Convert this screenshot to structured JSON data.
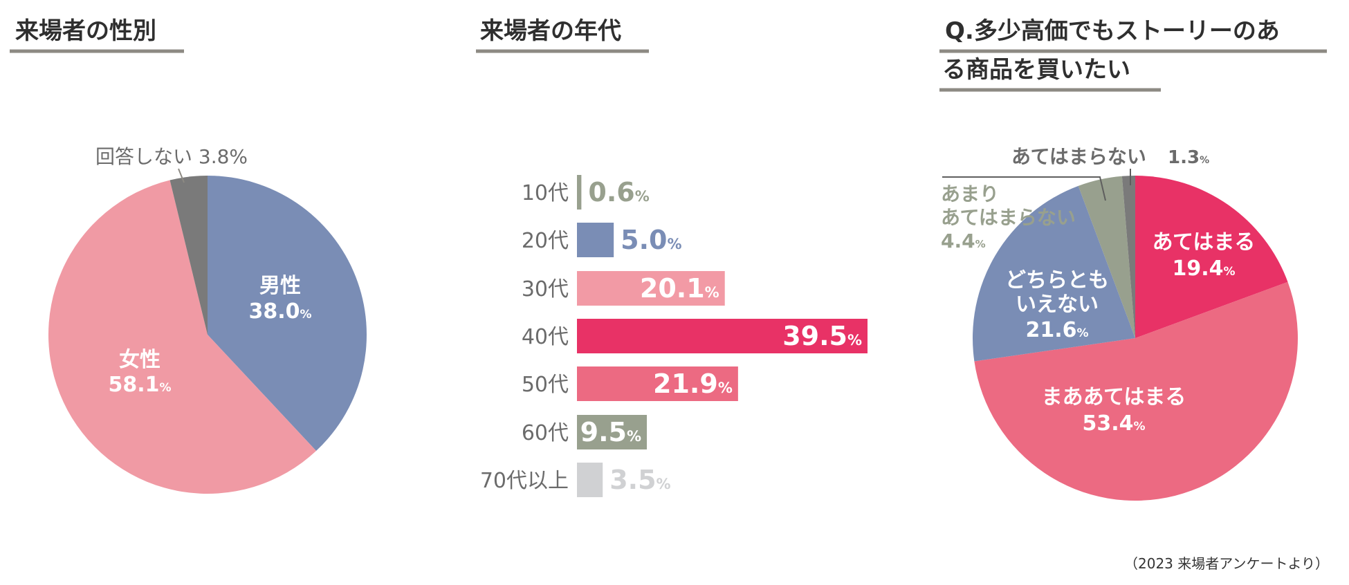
{
  "colors": {
    "male": "#7a8db5",
    "female": "#f09aa4",
    "no_answer": "#7a7a7a",
    "gray_green": "#98a08e",
    "light_gray": "#d0d1d3",
    "crimson": "#e83266",
    "rose": "#ec6a82",
    "pink": "#f29aa5",
    "text_dark": "#2f2f2f",
    "text_gray": "#6b6b6b"
  },
  "footnote": "（2023 来場者アンケートより）",
  "chart_data": [
    {
      "type": "pie",
      "title": "来場者の性別",
      "slices": [
        {
          "label": "男性",
          "value": 38.0,
          "display": "38.0",
          "unit": "%",
          "color": "#7a8db5",
          "label_inside": true
        },
        {
          "label": "女性",
          "value": 58.1,
          "display": "58.1",
          "unit": "%",
          "color": "#f09aa4",
          "label_inside": true
        },
        {
          "label": "回答しない",
          "value": 3.8,
          "display": "3.8",
          "unit": "%",
          "color": "#7a7a7a",
          "label_inside": false
        }
      ],
      "outside_label": "回答しない 3.8%"
    },
    {
      "type": "bar",
      "orientation": "horizontal",
      "title": "来場者の年代",
      "categories": [
        "10代",
        "20代",
        "30代",
        "40代",
        "50代",
        "60代",
        "70代以上"
      ],
      "values": [
        0.6,
        5.0,
        20.1,
        39.5,
        21.9,
        9.5,
        3.5
      ],
      "value_labels": [
        "0.6",
        "5.0",
        "20.1",
        "39.5",
        "21.9",
        "9.5",
        "3.5"
      ],
      "unit": "%",
      "colors": [
        "#98a08e",
        "#7a8db5",
        "#f29aa5",
        "#e83266",
        "#ec6a82",
        "#98a08e",
        "#d0d1d3"
      ],
      "label_inside": [
        false,
        false,
        true,
        true,
        true,
        true,
        false
      ]
    },
    {
      "type": "pie",
      "title": "Q.多少高価でもストーリーのある商品を買いたい",
      "title_lines": [
        "Q.多少高価でもストーリーのあ",
        "る商品を買いたい"
      ],
      "slices": [
        {
          "label": "あてはまる",
          "value": 19.4,
          "display": "19.4",
          "unit": "%",
          "color": "#e83266"
        },
        {
          "label": "まああてはまる",
          "value": 53.4,
          "display": "53.4",
          "unit": "%",
          "color": "#ec6a82"
        },
        {
          "label": "どちらともいえない",
          "label_lines": [
            "どちらとも",
            "いえない"
          ],
          "value": 21.6,
          "display": "21.6",
          "unit": "%",
          "color": "#7a8db5"
        },
        {
          "label": "あまりあてはまらない",
          "label_lines": [
            "あまり",
            "あてはまらない"
          ],
          "value": 4.4,
          "display": "4.4",
          "unit": "%",
          "color": "#98a08e"
        },
        {
          "label": "あてはまらない",
          "value": 1.3,
          "display": "1.3",
          "unit": "%",
          "color": "#7a7a7a"
        }
      ]
    }
  ]
}
